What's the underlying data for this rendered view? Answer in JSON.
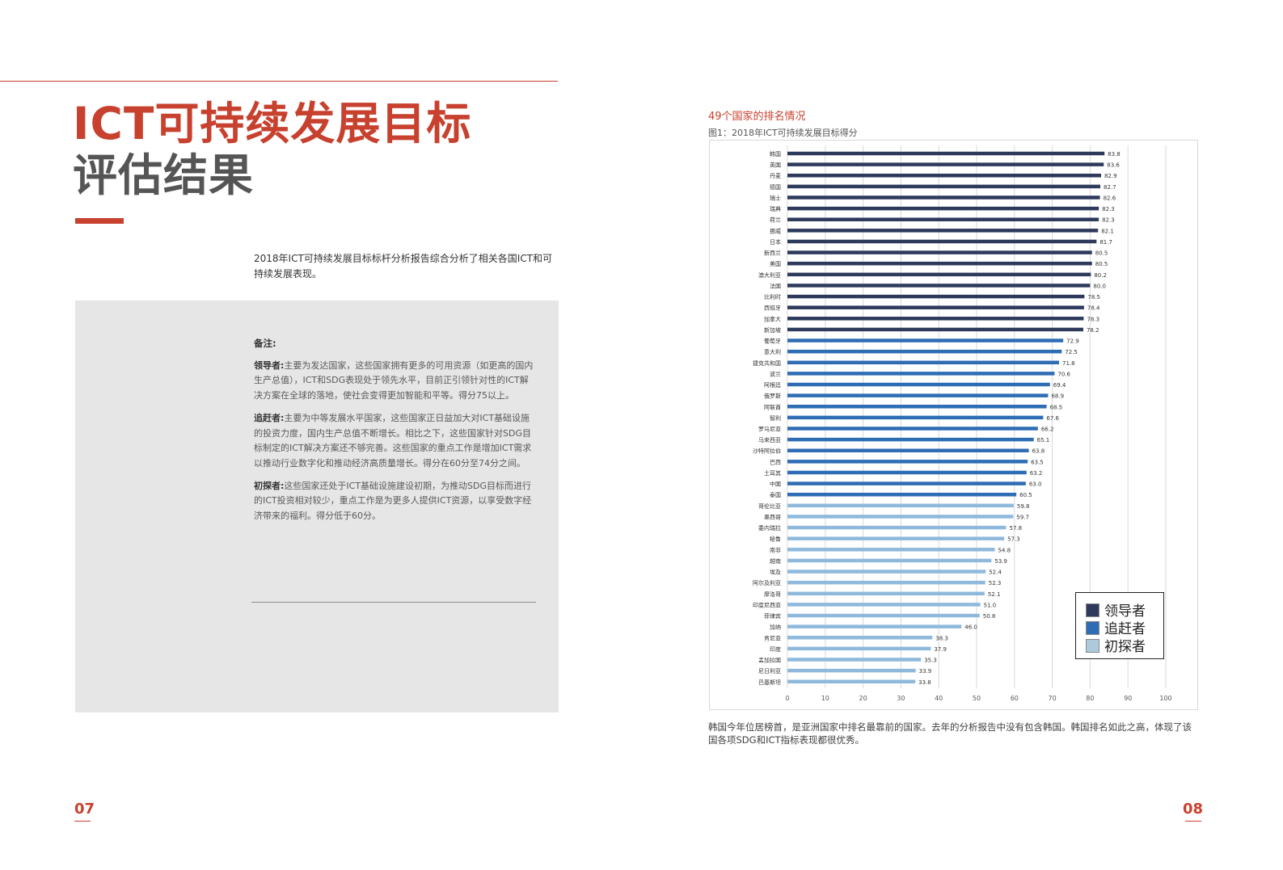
{
  "left_page": {
    "title_line1": "ICT可持续发展目标",
    "title_line2": "评估结果",
    "intro": "2018年ICT可持续发展目标标杆分析报告综合分析了相关各国ICT和可持续发展表现。",
    "notes": {
      "heading": "备注:",
      "items": [
        {
          "label": "领导者:",
          "text": "主要为发达国家，这些国家拥有更多的可用资源（如更高的国内生产总值），ICT和SDG表现处于领先水平，目前正引领针对性的ICT解决方案在全球的落地，使社会变得更加智能和平等。得分75以上。"
        },
        {
          "label": "追赶者:",
          "text": "主要为中等发展水平国家，这些国家正日益加大对ICT基础设施的投资力度，国内生产总值不断增长。相比之下，这些国家针对SDG目标制定的ICT解决方案还不够完善。这些国家的重点工作是增加ICT需求以推动行业数字化和推动经济高质量增长。得分在60分至74分之间。"
        },
        {
          "label": "初探者:",
          "text": "这些国家还处于ICT基础设施建设初期，为推动SDG目标而进行的ICT投资相对较少，重点工作是为更多人提供ICT资源，以享受数字经济带来的福利。得分低于60分。"
        }
      ]
    },
    "page_number": "07"
  },
  "right_page": {
    "subtitle": "49个国家的排名情况",
    "figure_title": "图1：2018年ICT可持续发展目标得分",
    "caption": "韩国今年位居榜首，是亚洲国家中排名最靠前的国家。去年的分析报告中没有包含韩国。韩国排名如此之高，体现了该国各项SDG和ICT指标表现都很优秀。",
    "page_number": "08"
  },
  "colors": {
    "accent": "#c8412f",
    "leader": "#2d3a5c",
    "chaser": "#2e6db4",
    "explorer": "#8fb9dc"
  },
  "chart_data": {
    "type": "bar",
    "orientation": "horizontal",
    "title": "图1：2018年ICT可持续发展目标得分",
    "xlim": [
      0,
      100
    ],
    "x_ticks": [
      "0",
      "10",
      "20",
      "30",
      "40",
      "50",
      "60",
      "70",
      "80",
      "90",
      "100"
    ],
    "grid": "vertical",
    "legend_position": "bottom-right",
    "legend": [
      {
        "name": "领导者",
        "group": "leader"
      },
      {
        "name": "追赶者",
        "group": "chaser"
      },
      {
        "name": "初探者",
        "group": "explorer"
      }
    ],
    "categories": [
      "韩国",
      "英国",
      "丹麦",
      "德国",
      "瑞士",
      "瑞典",
      "荷兰",
      "挪威",
      "日本",
      "新西兰",
      "美国",
      "澳大利亚",
      "法国",
      "比利时",
      "西班牙",
      "加拿大",
      "新加坡",
      "葡萄牙",
      "意大利",
      "捷克共和国",
      "波兰",
      "阿根廷",
      "俄罗斯",
      "阿联酋",
      "智利",
      "罗马尼亚",
      "马来西亚",
      "沙特阿拉伯",
      "巴西",
      "土耳其",
      "中国",
      "泰国",
      "哥伦比亚",
      "墨西哥",
      "委内瑞拉",
      "秘鲁",
      "南非",
      "越南",
      "埃及",
      "阿尔及利亚",
      "摩洛哥",
      "印度尼西亚",
      "菲律宾",
      "加纳",
      "肯尼亚",
      "印度",
      "孟加拉国",
      "尼日利亚",
      "巴基斯坦"
    ],
    "values": [
      83.8,
      83.6,
      82.9,
      82.7,
      82.6,
      82.3,
      82.3,
      82.1,
      81.7,
      80.5,
      80.5,
      80.2,
      80.0,
      78.5,
      78.4,
      78.3,
      78.2,
      72.9,
      72.5,
      71.8,
      70.6,
      69.4,
      68.9,
      68.5,
      67.6,
      66.2,
      65.1,
      63.8,
      63.5,
      63.2,
      63.0,
      60.5,
      59.8,
      59.7,
      57.8,
      57.3,
      54.8,
      53.9,
      52.4,
      52.3,
      52.1,
      51.0,
      50.8,
      46.0,
      38.3,
      37.9,
      35.3,
      33.9,
      33.8
    ],
    "value_labels": [
      "83.8",
      "83.6",
      "82.9",
      "82.7",
      "82.6",
      "82.3",
      "82.3",
      "82.1",
      "81.7",
      "80.5",
      "80.5",
      "80.2",
      "80.0",
      "78.5",
      "78.4",
      "78.3",
      "78.2",
      "72.9",
      "72.5",
      "71.8",
      "70.6",
      "69.4",
      "68.9",
      "68.5",
      "67.6",
      "66.2",
      "65.1",
      "63.8",
      "63.5",
      "63.2",
      "63.0",
      "60.5",
      "59.8",
      "59.7",
      "57.8",
      "57.3",
      "54.8",
      "53.9",
      "52.4",
      "52.3",
      "52.1",
      "51.0",
      "50.8",
      "46.0",
      "38.3",
      "37.9",
      "35.3",
      "33.9",
      "33.8"
    ],
    "groups": [
      "leader",
      "leader",
      "leader",
      "leader",
      "leader",
      "leader",
      "leader",
      "leader",
      "leader",
      "leader",
      "leader",
      "leader",
      "leader",
      "leader",
      "leader",
      "leader",
      "leader",
      "chaser",
      "chaser",
      "chaser",
      "chaser",
      "chaser",
      "chaser",
      "chaser",
      "chaser",
      "chaser",
      "chaser",
      "chaser",
      "chaser",
      "chaser",
      "chaser",
      "chaser",
      "explorer",
      "explorer",
      "explorer",
      "explorer",
      "explorer",
      "explorer",
      "explorer",
      "explorer",
      "explorer",
      "explorer",
      "explorer",
      "explorer",
      "explorer",
      "explorer",
      "explorer",
      "explorer",
      "explorer"
    ]
  }
}
